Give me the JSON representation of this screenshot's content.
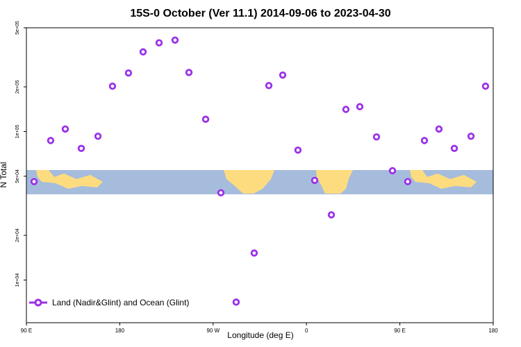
{
  "chart_data": {
    "type": "scatter",
    "title": "15S-0 October (Ver 11.1)   2014-09-06 to 2023-04-30",
    "x_label": "Longitude (deg E)",
    "y_label": "N Total",
    "log_y": true,
    "legend_position": "bottom-left",
    "series": [
      {
        "name": "Land (Nadir&Glint) and Ocean (Glint)",
        "color": "#9b30e8",
        "x": [
          97.4,
          113.4,
          127.5,
          142.9,
          159.0,
          173.0,
          188.4,
          202.5,
          217.9,
          233.3,
          246.7,
          262.8,
          277.5,
          292.2,
          309.6,
          323.7,
          337.1,
          351.8,
          367.9,
          384.0,
          398.0,
          411.4,
          427.5,
          442.9,
          457.6,
          473.7,
          487.7,
          502.5,
          518.6,
          532.6
        ],
        "values": [
          46000,
          87000,
          104000,
          77000,
          93000,
          202000,
          248000,
          344000,
          396000,
          413000,
          250000,
          121000,
          38700,
          7100,
          15200,
          204000,
          240000,
          75000,
          46900,
          27500,
          141000,
          147000,
          92000,
          54500,
          46000,
          87000,
          104000,
          77000,
          93000,
          202000
        ]
      }
    ],
    "xlim": [
      90,
      540
    ],
    "xticks": [
      {
        "value": 90,
        "label": "90 E"
      },
      {
        "value": 180,
        "label": "180"
      },
      {
        "value": 270,
        "label": "90 W"
      },
      {
        "value": 360,
        "label": "0"
      },
      {
        "value": 450,
        "label": "90 E"
      },
      {
        "value": 540,
        "label": "180"
      }
    ],
    "ylim": [
      5160,
      500000
    ],
    "yticks": [
      {
        "value": 10000,
        "label": "1e+04"
      },
      {
        "value": 20000,
        "label": "2e+04"
      },
      {
        "value": 50000,
        "label": "5e+04"
      },
      {
        "value": 100000,
        "label": "1e+05"
      },
      {
        "value": 200000,
        "label": "2e+05"
      },
      {
        "value": 500000,
        "label": "5e+05"
      }
    ]
  }
}
